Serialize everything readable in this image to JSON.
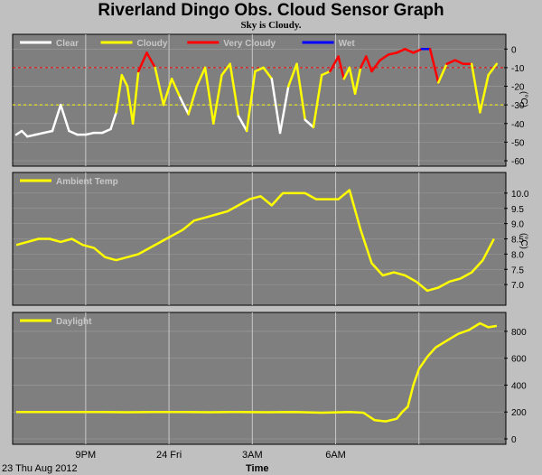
{
  "page": {
    "title": "Riverland Dingo Obs. Cloud Sensor Graph",
    "subtitle": "Sky is Cloudy.",
    "date_label": "23 Thu Aug 2012",
    "time_axis_label": "Time"
  },
  "colors": {
    "panel_bg": "#7f7f7f",
    "page_bg": "#c0c0c0",
    "grid": "#c8c8c8",
    "clear": "#ffffff",
    "cloudy": "#ffff00",
    "very_cloudy": "#ff0000",
    "wet": "#0000ff",
    "threshold_cloudy": "#ff0000",
    "threshold_clear": "#ffff00"
  },
  "chart_data": [
    {
      "type": "line",
      "panel": "cloud",
      "unit": "(°C)",
      "legend": [
        {
          "name": "Clear",
          "color": "#ffffff"
        },
        {
          "name": "Cloudy",
          "color": "#ffff00"
        },
        {
          "name": "Very Cloudy",
          "color": "#ff0000"
        },
        {
          "name": "Wet",
          "color": "#0000ff"
        }
      ],
      "ylim": [
        -60,
        5
      ],
      "yticks": [
        "0",
        "-10",
        "-20",
        "-30",
        "-40",
        "-50",
        "-60"
      ],
      "thresholds": [
        -10,
        -30
      ],
      "x": [
        18.5,
        18.7,
        18.9,
        19.2,
        19.5,
        19.8,
        20.1,
        20.4,
        20.7,
        21.0,
        21.3,
        21.6,
        21.9,
        22.1,
        22.3,
        22.5,
        22.7,
        22.9,
        23.2,
        23.5,
        23.8,
        24.1,
        24.4,
        24.7,
        25.0,
        25.3,
        25.6,
        25.9,
        26.2,
        26.5,
        26.8,
        27.1,
        27.4,
        27.7,
        28.0,
        28.3,
        28.6,
        28.9,
        29.2,
        29.5,
        29.8,
        30.1,
        30.3,
        30.5,
        30.7,
        30.9,
        31.1,
        31.3,
        31.6,
        31.9,
        32.2,
        32.5,
        32.8,
        33.1,
        33.4,
        33.7,
        34.0,
        34.3,
        34.6,
        34.9,
        35.2,
        35.5,
        35.8
      ],
      "y": [
        -46,
        -44,
        -47,
        -46,
        -45,
        -44,
        -30,
        -44,
        -46,
        -46,
        -45,
        -45,
        -43,
        -34,
        -14,
        -20,
        -40,
        -12,
        -2,
        -10,
        -30,
        -16,
        -26,
        -35,
        -20,
        -10,
        -40,
        -14,
        -8,
        -36,
        -44,
        -12,
        -10,
        -16,
        -45,
        -20,
        -8,
        -38,
        -42,
        -14,
        -12,
        -4,
        -16,
        -10,
        -24,
        -10,
        -4,
        -12,
        -6,
        -3,
        -2,
        0,
        -2,
        0,
        0,
        -18,
        -8,
        -6,
        -8,
        -8,
        -34,
        -14,
        -8
      ]
    },
    {
      "type": "line",
      "panel": "ambient",
      "unit": "(°C)",
      "series": [
        {
          "name": "Ambient Temp",
          "color": "#ffff00"
        }
      ],
      "ylim": [
        6.5,
        10.5
      ],
      "yticks": [
        "10.0",
        "9.5",
        "9.0",
        "8.5",
        "8.0",
        "7.5",
        "7.0"
      ],
      "x": [
        18.5,
        18.9,
        19.3,
        19.7,
        20.1,
        20.5,
        20.9,
        21.3,
        21.7,
        22.1,
        22.5,
        22.9,
        23.3,
        23.7,
        24.1,
        24.5,
        24.9,
        25.3,
        25.7,
        26.1,
        26.5,
        26.9,
        27.3,
        27.7,
        28.1,
        28.5,
        28.9,
        29.3,
        29.7,
        30.1,
        30.5,
        30.9,
        31.3,
        31.7,
        32.1,
        32.5,
        32.9,
        33.3,
        33.7,
        34.1,
        34.5,
        34.9,
        35.3,
        35.7
      ],
      "y": [
        8.3,
        8.4,
        8.5,
        8.5,
        8.4,
        8.5,
        8.3,
        8.2,
        7.9,
        7.8,
        7.9,
        8.0,
        8.2,
        8.4,
        8.6,
        8.8,
        9.1,
        9.2,
        9.3,
        9.4,
        9.6,
        9.8,
        9.9,
        9.6,
        10.0,
        10.0,
        10.0,
        9.8,
        9.8,
        9.8,
        10.1,
        8.8,
        7.7,
        7.3,
        7.4,
        7.3,
        7.1,
        6.8,
        6.9,
        7.1,
        7.2,
        7.4,
        7.8,
        8.5
      ]
    },
    {
      "type": "line",
      "panel": "daylight",
      "series": [
        {
          "name": "Daylight",
          "color": "#ffff00"
        }
      ],
      "ylim": [
        0,
        900
      ],
      "yticks": [
        "800",
        "600",
        "400",
        "200",
        "0"
      ],
      "x": [
        18.5,
        19.5,
        20.5,
        21.5,
        22.5,
        23.5,
        24.5,
        25.5,
        26.5,
        27.5,
        28.5,
        29.5,
        30.5,
        31.0,
        31.4,
        31.8,
        32.2,
        32.4,
        32.6,
        32.8,
        33.0,
        33.3,
        33.6,
        34.0,
        34.4,
        34.8,
        35.2,
        35.5,
        35.8
      ],
      "y": [
        200,
        200,
        200,
        200,
        198,
        200,
        200,
        198,
        200,
        198,
        200,
        195,
        200,
        195,
        140,
        130,
        150,
        200,
        240,
        400,
        520,
        610,
        680,
        730,
        780,
        810,
        860,
        830,
        840
      ]
    }
  ],
  "xaxis": {
    "range": [
      18.5,
      36.0
    ],
    "ticks": [
      {
        "hour": 21,
        "label": "9PM"
      },
      {
        "hour": 24,
        "label": "24 Fri"
      },
      {
        "hour": 27,
        "label": "3AM"
      },
      {
        "hour": 30,
        "label": "6AM"
      },
      {
        "hour": 33,
        "label": ""
      }
    ]
  }
}
